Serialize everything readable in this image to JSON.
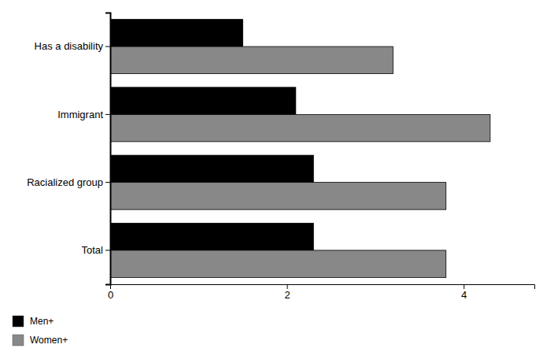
{
  "chart_data": {
    "type": "bar",
    "orientation": "horizontal",
    "categories": [
      "Has a disability",
      "Immigrant",
      "Racialized group",
      "Total"
    ],
    "series": [
      {
        "name": "Men+",
        "color": "#000000",
        "values": [
          1.5,
          2.1,
          2.3,
          2.3
        ]
      },
      {
        "name": "Women+",
        "color": "#888888",
        "values": [
          3.2,
          4.3,
          3.8,
          3.8
        ]
      }
    ],
    "xlim": [
      0,
      4.8
    ],
    "xticks": [
      0,
      2,
      4
    ],
    "grid": false,
    "legend": "bottom"
  }
}
